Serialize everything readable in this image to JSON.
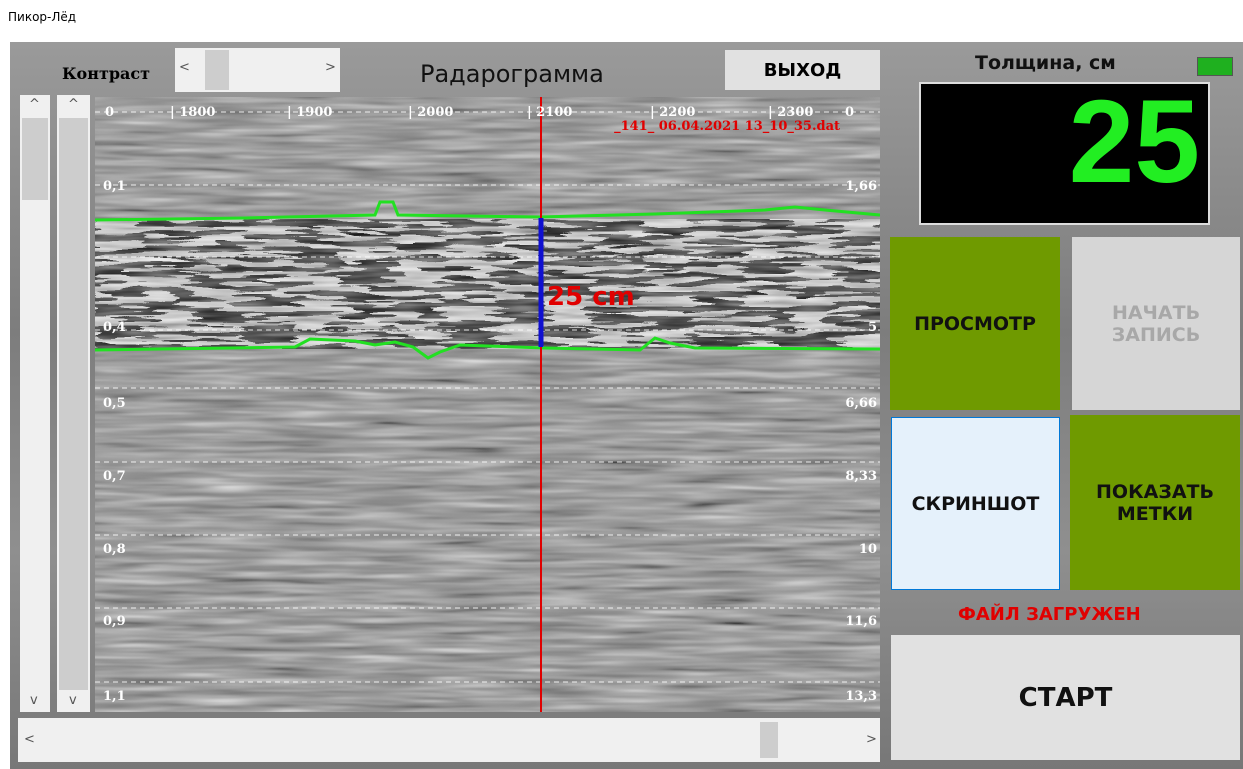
{
  "window": {
    "title": "Пикор-Лёд"
  },
  "toolbar": {
    "contrast_label": "Контраст",
    "scroll_left": "<",
    "scroll_right": ">",
    "title": "Радарограмма",
    "exit_button": "ВЫХОД"
  },
  "radargram": {
    "top_labels": [
      "0",
      "| 1800",
      "| 1900",
      "| 2000",
      "| 2100",
      "| 2200",
      "| 2300",
      "0"
    ],
    "file_name": "_141_  06.04.2021  13_10_35.dat",
    "left_labels": [
      "0,1",
      "0,4",
      "0,5",
      "0,7",
      "0,8",
      "0,9",
      "1,1"
    ],
    "right_labels": [
      "1,66",
      "5",
      "6,66",
      "8,33",
      "10",
      "11,6",
      "13,3"
    ],
    "annotation": "25 cm"
  },
  "scrollbars": {
    "up": "^",
    "down": "v",
    "left": "<",
    "right": ">"
  },
  "panel": {
    "thickness_label": "Толщина, см",
    "thickness_value": 25,
    "buttons": {
      "view": "ПРОСМОТР",
      "record": "НАЧАТЬ ЗАПИСЬ",
      "screenshot": "СКРИНШОТ",
      "show_marks": "ПОКАЗАТЬ МЕТКИ"
    },
    "status": "ФАЙЛ ЗАГРУЖЕН",
    "start_button": "СТАРТ"
  }
}
